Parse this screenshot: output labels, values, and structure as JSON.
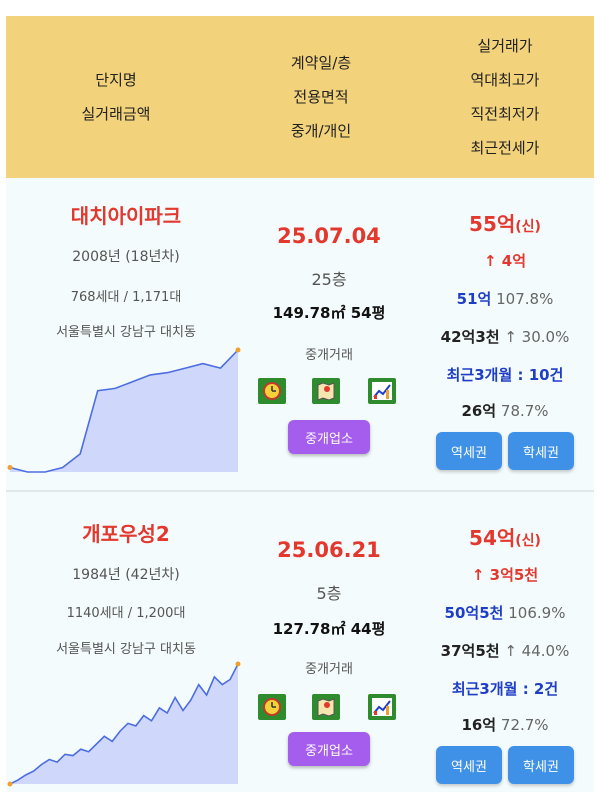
{
  "header": {
    "col1": [
      "단지명",
      "실거래금액"
    ],
    "col2": [
      "계약일/층",
      "전용면적",
      "중개/개인"
    ],
    "col3": [
      "실거래가",
      "역대최고가",
      "직전최저가",
      "최근전세가"
    ]
  },
  "listings": [
    {
      "name": "대치아이파크",
      "year": "2008년 (18년차)",
      "units": "768세대 / 1,171대",
      "address": "서울특별시 강남구 대치동",
      "date": "25.07.04",
      "floor": "25층",
      "area": "149.78㎡ 54평",
      "deal_type": "중개거래",
      "broker_label": "중개업소",
      "price": "55억",
      "price_tag": "(신)",
      "change": "↑ 4억",
      "prev_high": "51억",
      "prev_high_pct": "107.8%",
      "prev_low": "42억3천",
      "prev_low_pct": "↑ 30.0%",
      "recent": "최근3개월 : 10건",
      "jeonse": "26억",
      "jeonse_pct": "78.7%",
      "btn_station": "역세권",
      "btn_school": "학세권",
      "trend": [
        8,
        6,
        6,
        8,
        14,
        42,
        43,
        46,
        49,
        50,
        52,
        54,
        52,
        60
      ]
    },
    {
      "name": "개포우성2",
      "year": "1984년 (42년차)",
      "units": "1140세대 / 1,200대",
      "address": "서울특별시 강남구 대치동",
      "date": "25.06.21",
      "floor": "5층",
      "area": "127.78㎡ 44평",
      "deal_type": "중개거래",
      "broker_label": "중개업소",
      "price": "54억",
      "price_tag": "(신)",
      "change": "↑ 3억5천",
      "prev_high": "50억5천",
      "prev_high_pct": "106.9%",
      "prev_low": "37억5천",
      "prev_low_pct": "↑ 44.0%",
      "recent": "최근3개월 : 2건",
      "jeonse": "16억",
      "jeonse_pct": "72.7%",
      "btn_station": "역세권",
      "btn_school": "학세권",
      "trend": [
        3,
        6,
        10,
        13,
        18,
        22,
        20,
        26,
        25,
        30,
        28,
        34,
        40,
        36,
        44,
        50,
        48,
        56,
        52,
        62,
        58,
        70,
        60,
        68,
        80,
        72,
        86,
        80,
        84,
        96
      ]
    }
  ],
  "colors": {
    "header_bg": "#f2d27a",
    "card_bg": "#f4fbfc",
    "name_red": "#e2382e",
    "blue": "#1f3ec6",
    "button_blue": "#3f91e8",
    "broker_purple": "#a45ded",
    "chart_fill": "#cfd8fb",
    "chart_line": "#4c6ee0",
    "chart_end_dot": "#f0a030"
  },
  "icons": [
    "clock-icon",
    "map-icon",
    "chart-icon"
  ]
}
